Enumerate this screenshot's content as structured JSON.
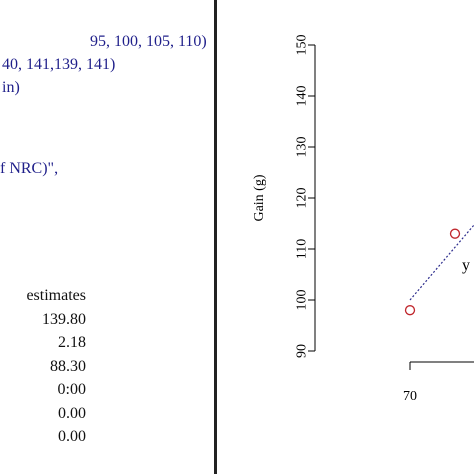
{
  "console": {
    "code_lines": [
      " 95, 100, 105, 110)",
      "40, 141,139, 141)",
      "in)",
      "",
      "",
      "f NRC)\","
    ],
    "output": {
      "header": "estimates",
      "values": [
        "139.80",
        "2.18",
        "88.30",
        "0:00",
        "0.00",
        "0.00"
      ]
    }
  },
  "chart_data": {
    "type": "scatter",
    "ylabel": "Gain (g)",
    "ylim": [
      90,
      150
    ],
    "yticks": [
      90,
      100,
      110,
      120,
      130,
      140,
      150
    ],
    "xtick_labels": [
      "70"
    ],
    "points": [
      {
        "x": 70,
        "y": 98
      },
      {
        "x": 75,
        "y": 113
      }
    ],
    "fit_line": {
      "x1": 70,
      "y1": 100,
      "x2": 75,
      "y2": 116
    },
    "annotation": "y",
    "colors": {
      "points": "#c0272d",
      "fit_line": "#2b2b8c",
      "axes": "#000000"
    }
  }
}
